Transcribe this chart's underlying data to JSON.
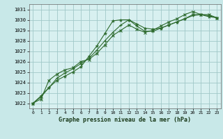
{
  "title": "Graphe pression niveau de la mer (hPa)",
  "bg_color": "#c8e8e8",
  "plot_bg_color": "#d8f0f0",
  "grid_color": "#a0c8c8",
  "line_color": "#2d6a2d",
  "xlim": [
    -0.5,
    23.5
  ],
  "ylim": [
    1021.5,
    1031.5
  ],
  "yticks": [
    1022,
    1023,
    1024,
    1025,
    1026,
    1027,
    1028,
    1029,
    1030,
    1031
  ],
  "xticks": [
    0,
    1,
    2,
    3,
    4,
    5,
    6,
    7,
    8,
    9,
    10,
    11,
    12,
    13,
    14,
    15,
    16,
    17,
    18,
    19,
    20,
    21,
    22,
    23
  ],
  "series1_x": [
    0,
    1,
    2,
    3,
    4,
    5,
    6,
    7,
    8,
    9,
    10,
    11,
    12,
    13,
    14,
    15,
    16,
    17,
    18,
    19,
    20,
    21,
    22,
    23
  ],
  "series1_y": [
    1022.0,
    1022.7,
    1023.5,
    1024.2,
    1024.6,
    1025.0,
    1025.5,
    1026.5,
    1027.5,
    1028.7,
    1029.9,
    1030.0,
    1030.0,
    1029.6,
    1029.2,
    1029.1,
    1029.2,
    1029.5,
    1029.8,
    1030.1,
    1030.5,
    1030.5,
    1030.3,
    1030.2
  ],
  "series2_x": [
    0,
    1,
    2,
    3,
    4,
    5,
    6,
    7,
    8,
    9,
    10,
    11,
    12,
    13,
    14,
    15,
    16,
    17,
    18,
    19,
    20,
    21,
    22,
    23
  ],
  "series2_y": [
    1022.0,
    1022.6,
    1023.5,
    1024.4,
    1024.9,
    1025.3,
    1025.8,
    1026.3,
    1027.1,
    1028.0,
    1028.8,
    1029.5,
    1030.0,
    1029.4,
    1028.9,
    1028.9,
    1029.2,
    1029.5,
    1029.8,
    1030.1,
    1030.4,
    1030.5,
    1030.4,
    1030.2
  ],
  "series3_x": [
    0,
    1,
    2,
    3,
    4,
    5,
    6,
    7,
    8,
    9,
    10,
    11,
    12,
    13,
    14,
    15,
    16,
    17,
    18,
    19,
    20,
    21,
    22,
    23
  ],
  "series3_y": [
    1022.0,
    1022.4,
    1024.2,
    1024.8,
    1025.2,
    1025.4,
    1026.0,
    1026.2,
    1026.8,
    1027.6,
    1028.5,
    1029.0,
    1029.5,
    1029.1,
    1028.8,
    1029.0,
    1029.4,
    1029.8,
    1030.1,
    1030.5,
    1030.8,
    1030.5,
    1030.5,
    1030.2
  ]
}
